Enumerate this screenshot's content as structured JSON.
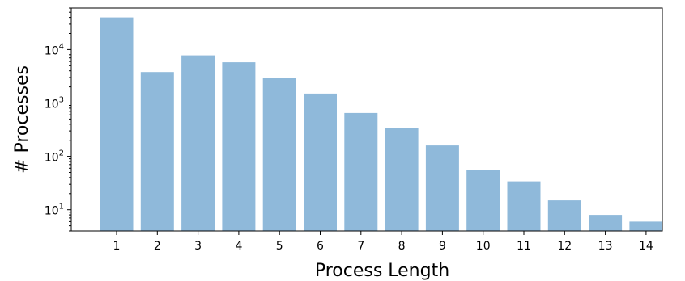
{
  "chart_data": {
    "type": "bar",
    "xlabel": "Process Length",
    "ylabel": "# Processes",
    "yscale": "log",
    "ylim": [
      4,
      60000
    ],
    "categories": [
      "1",
      "2",
      "3",
      "4",
      "5",
      "6",
      "7",
      "8",
      "9",
      "10",
      "11",
      "12",
      "13",
      "14"
    ],
    "values": [
      40000,
      3800,
      7800,
      5800,
      3000,
      1500,
      650,
      340,
      160,
      56,
      34,
      15,
      8,
      6
    ],
    "y_ticks": [
      {
        "value": 10,
        "base": "10",
        "exp": "1"
      },
      {
        "value": 100,
        "base": "10",
        "exp": "2"
      },
      {
        "value": 1000,
        "base": "10",
        "exp": "3"
      },
      {
        "value": 10000,
        "base": "10",
        "exp": "4"
      }
    ],
    "bar_color": "#8fb9da",
    "grid": false,
    "legend": "none"
  }
}
